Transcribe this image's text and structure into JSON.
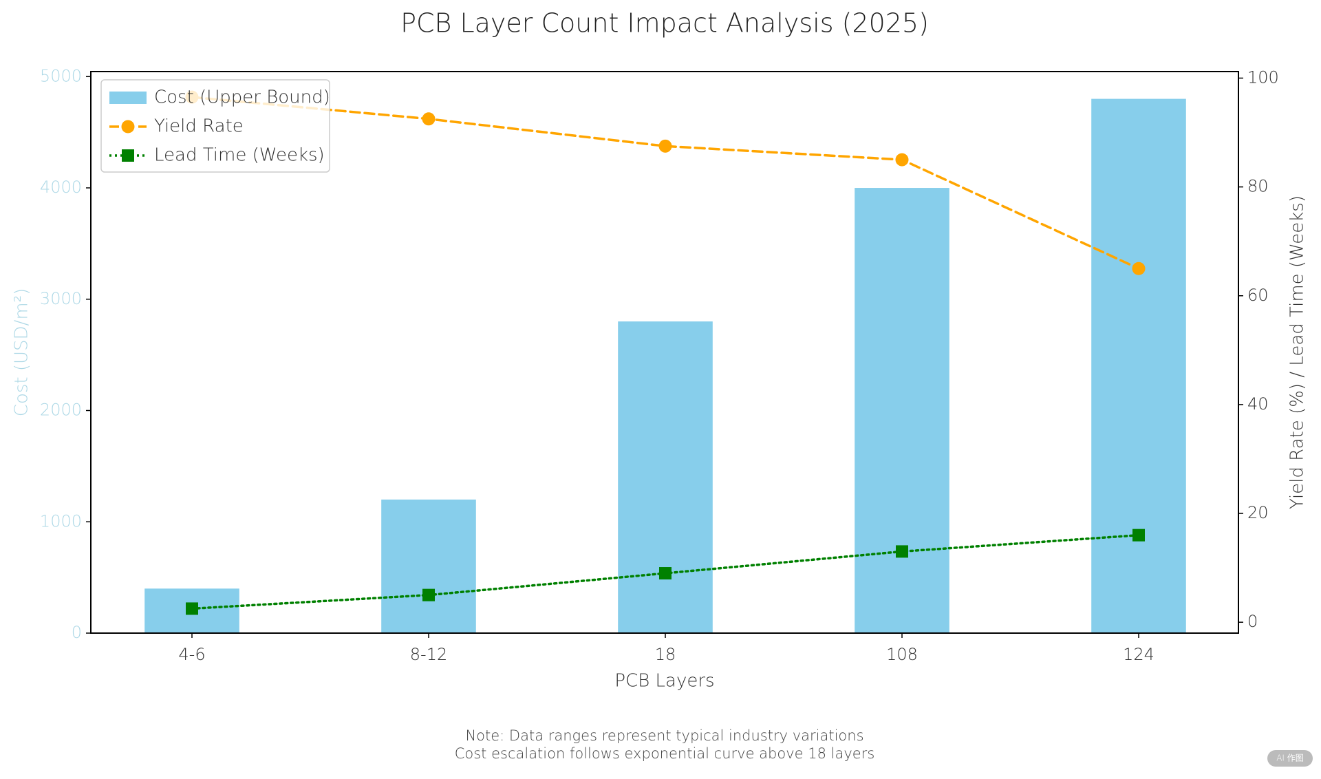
{
  "chart_data": {
    "type": "bar_line",
    "title": "PCB Layer Count Impact Analysis (2025)",
    "x_label": "PCB Layers",
    "y_label": "Cost (USD/m²)",
    "y2_label": "Yield Rate (%) / Lead Time (Weeks)",
    "y_label_color": "#add8e6",
    "categories": [
      "4-6",
      "8-12",
      "18",
      "108",
      "124"
    ],
    "series": [
      {
        "name": "Cost (Upper Bound)",
        "color": "#87ceeb",
        "type": "bar",
        "values": [
          400,
          1200,
          2800,
          4000,
          4800
        ]
      },
      {
        "name": "Yield Rate",
        "color": "#ffa500",
        "type": "line",
        "axis": "y2",
        "line_style": "dashed",
        "marker": "circle",
        "values": [
          96.5,
          92.5,
          87.5,
          85,
          65
        ]
      },
      {
        "name": "Lead Time (Weeks)",
        "color": "#008000",
        "type": "line",
        "axis": "y2",
        "line_style": "dotted",
        "marker": "square",
        "values": [
          2.5,
          5,
          9,
          13,
          16
        ]
      }
    ],
    "ylim": [
      0,
      5045
    ],
    "yticks": [
      0,
      1000,
      2000,
      3000,
      4000,
      5000
    ],
    "y2lim": [
      -2,
      101.2
    ],
    "y2ticks": [
      0,
      20,
      40,
      60,
      80,
      100
    ],
    "legend": "upper left",
    "notes": [
      "Note: Data ranges represent typical industry variations",
      "Cost escalation follows exponential curve above 18 layers"
    ],
    "watermark": "AI 作图"
  }
}
